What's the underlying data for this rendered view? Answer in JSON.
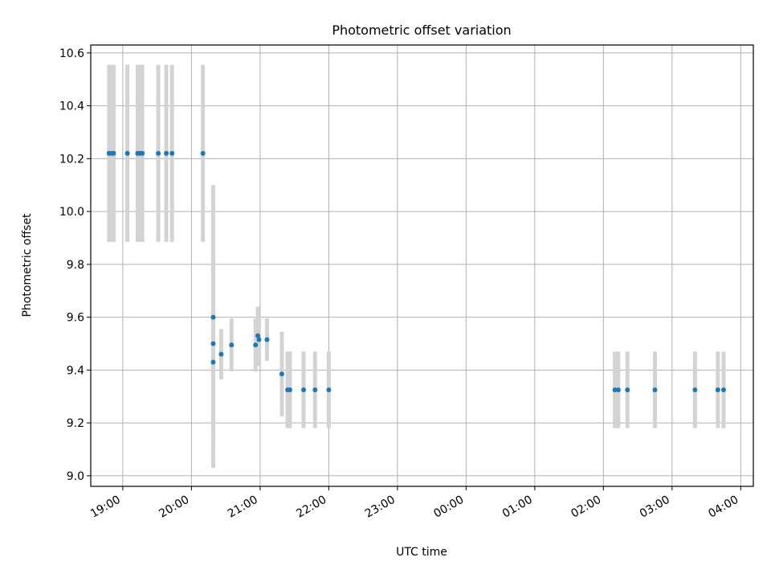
{
  "chart_data": {
    "type": "scatter",
    "title": "Photometric offset variation",
    "xlabel": "UTC time",
    "ylabel": "Photometric offset",
    "x_tick_labels": [
      "19:00",
      "20:00",
      "21:00",
      "22:00",
      "23:00",
      "00:00",
      "01:00",
      "02:00",
      "03:00",
      "04:00"
    ],
    "y_tick_labels": [
      "9.0",
      "9.2",
      "9.4",
      "9.6",
      "9.8",
      "10.0",
      "10.2",
      "10.4",
      "10.6"
    ],
    "y_ticks": [
      9.0,
      9.2,
      9.4,
      9.6,
      9.8,
      10.0,
      10.2,
      10.4,
      10.6
    ],
    "xlim": [
      "18:32",
      "04:11"
    ],
    "ylim": [
      8.96,
      10.63
    ],
    "grid": true,
    "marker_color": "#1f77b4",
    "errorbar_color": "#d3d3d3",
    "series": [
      {
        "points": [
          {
            "t": "18:48",
            "y": 10.22,
            "err": 0.335
          },
          {
            "t": "18:50",
            "y": 10.22,
            "err": 0.335
          },
          {
            "t": "18:52",
            "y": 10.22,
            "err": 0.335
          },
          {
            "t": "19:04",
            "y": 10.22,
            "err": 0.335
          },
          {
            "t": "19:13",
            "y": 10.22,
            "err": 0.335
          },
          {
            "t": "19:15",
            "y": 10.22,
            "err": 0.335
          },
          {
            "t": "19:17",
            "y": 10.22,
            "err": 0.335
          },
          {
            "t": "19:31",
            "y": 10.22,
            "err": 0.335
          },
          {
            "t": "19:38",
            "y": 10.22,
            "err": 0.335
          },
          {
            "t": "19:43",
            "y": 10.22,
            "err": 0.335
          },
          {
            "t": "20:10",
            "y": 10.22,
            "err": 0.335
          },
          {
            "t": "20:19",
            "y": 9.43,
            "err": 0.4
          },
          {
            "t": "20:19",
            "y": 9.6,
            "err": 0.5
          },
          {
            "t": "20:19",
            "y": 9.5,
            "err": 0.33
          },
          {
            "t": "20:26",
            "y": 9.46,
            "err": 0.095
          },
          {
            "t": "20:35",
            "y": 9.495,
            "err": 0.1
          },
          {
            "t": "20:56",
            "y": 9.495,
            "err": 0.1
          },
          {
            "t": "20:58",
            "y": 9.53,
            "err": 0.11
          },
          {
            "t": "20:59",
            "y": 9.515,
            "err": 0.1
          },
          {
            "t": "21:06",
            "y": 9.515,
            "err": 0.08
          },
          {
            "t": "21:19",
            "y": 9.385,
            "err": 0.16
          },
          {
            "t": "21:24",
            "y": 9.325,
            "err": 0.145
          },
          {
            "t": "21:26",
            "y": 9.325,
            "err": 0.145
          },
          {
            "t": "21:38",
            "y": 9.325,
            "err": 0.145
          },
          {
            "t": "21:48",
            "y": 9.325,
            "err": 0.145
          },
          {
            "t": "22:00",
            "y": 9.325,
            "err": 0.145
          },
          {
            "t": "02:10",
            "y": 9.325,
            "err": 0.145
          },
          {
            "t": "02:13",
            "y": 9.325,
            "err": 0.145
          },
          {
            "t": "02:21",
            "y": 9.325,
            "err": 0.145
          },
          {
            "t": "02:45",
            "y": 9.325,
            "err": 0.145
          },
          {
            "t": "03:20",
            "y": 9.325,
            "err": 0.145
          },
          {
            "t": "03:40",
            "y": 9.325,
            "err": 0.145
          },
          {
            "t": "03:45",
            "y": 9.325,
            "err": 0.145
          }
        ]
      }
    ]
  }
}
